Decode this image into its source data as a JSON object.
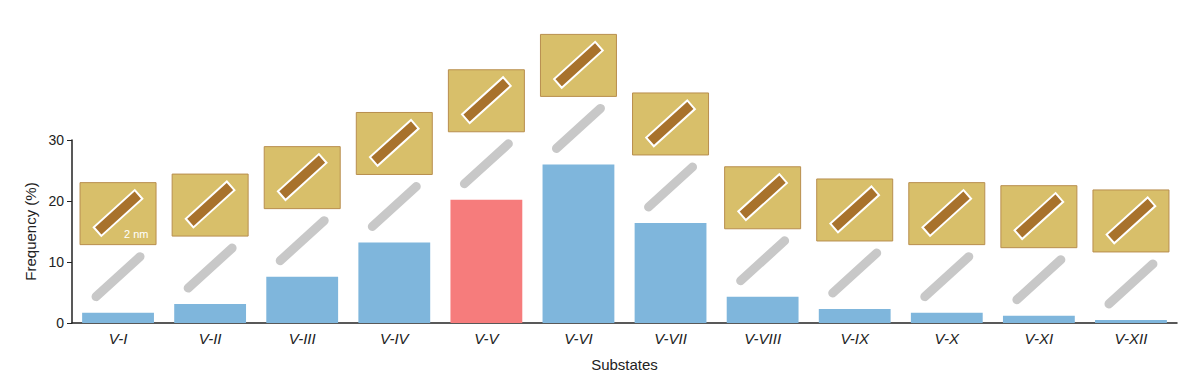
{
  "chart_data": {
    "type": "bar",
    "x_label": "Substates",
    "y_label": "Frequency (%)",
    "categories": [
      "V-I",
      "V-II",
      "V-III",
      "V-IV",
      "V-V",
      "V-VI",
      "V-VII",
      "V-VIII",
      "V-IX",
      "V-X",
      "V-XI",
      "V-XII"
    ],
    "values": [
      1.7,
      3.1,
      7.6,
      13.2,
      20.2,
      26.0,
      16.4,
      4.3,
      2.3,
      1.7,
      1.2,
      0.5
    ],
    "colors": [
      "#7fb6dc",
      "#7fb6dc",
      "#7fb6dc",
      "#7fb6dc",
      "#f67c7c",
      "#7fb6dc",
      "#7fb6dc",
      "#7fb6dc",
      "#7fb6dc",
      "#7fb6dc",
      "#7fb6dc",
      "#7fb6dc"
    ],
    "ylim": [
      0,
      30
    ],
    "yticks": [
      0,
      10,
      20,
      30
    ],
    "grid": false,
    "annotation": "2 nm"
  }
}
